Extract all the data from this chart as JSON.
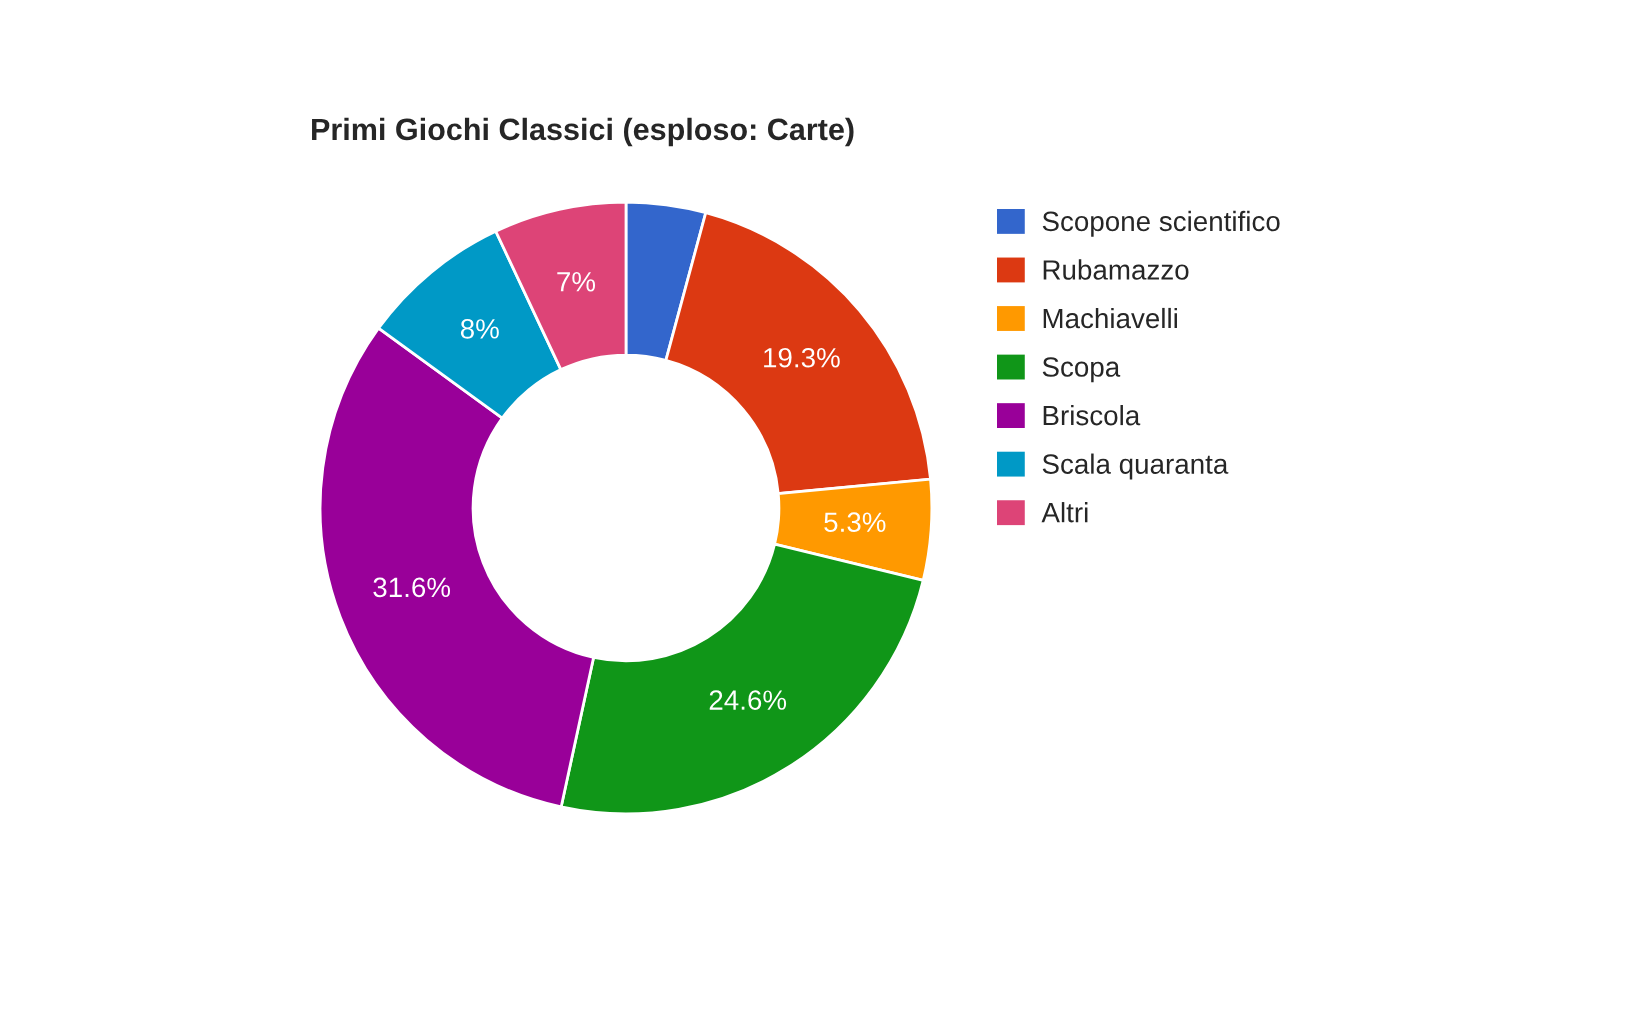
{
  "chart_data": {
    "type": "donut",
    "title": "Primi Giochi Classici (esploso: Carte)",
    "categories": [
      "Scopone scientifico",
      "Rubamazzo",
      "Machiavelli",
      "Scopa",
      "Briscola",
      "Scala quaranta",
      "Altri"
    ],
    "values": [
      4.2,
      19.3,
      5.3,
      24.6,
      31.6,
      8,
      7
    ],
    "value_labels": [
      null,
      "19.3%",
      "5.3%",
      "24.6%",
      "31.6%",
      "8%",
      "7%"
    ],
    "colors": [
      "#3366cc",
      "#dc3912",
      "#ff9900",
      "#109618",
      "#990099",
      "#0099c6",
      "#dd4477"
    ],
    "legend": "top right"
  }
}
